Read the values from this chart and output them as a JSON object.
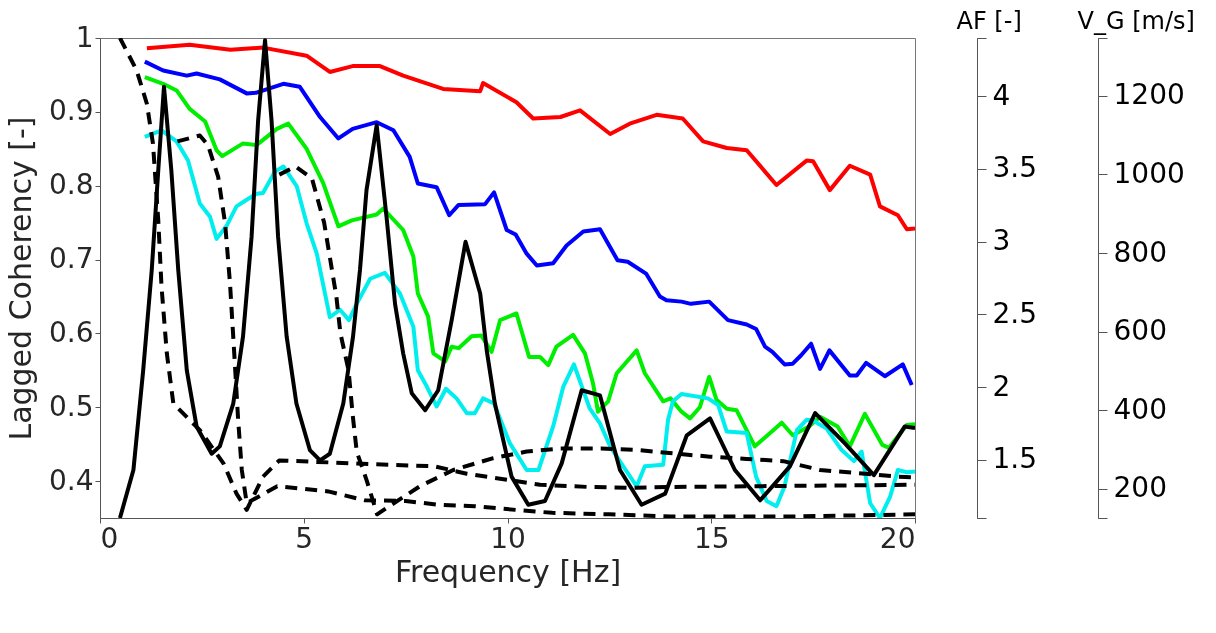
{
  "chart_data": {
    "type": "line",
    "xlabel": "Frequency [Hz]",
    "ylabel": "Lagged Coherency [-]",
    "xlim": [
      0,
      20
    ],
    "xticks": [
      0,
      5,
      10,
      15,
      20
    ],
    "ylim": [
      0.35,
      1
    ],
    "yticks": [
      0.4,
      0.5,
      0.6,
      0.7,
      0.8,
      0.9,
      1
    ],
    "y2label": "AF [-]",
    "y2lim": [
      1.1,
      4.4
    ],
    "y2ticks": [
      1.5,
      2,
      2.5,
      3,
      3.5,
      4
    ],
    "y3label": "V_G [m/s]",
    "y3lim": [
      126,
      1347
    ],
    "y3ticks": [
      200,
      400,
      600,
      800,
      1000,
      1200
    ],
    "series": [
      {
        "color": "#ff0000",
        "x": [
          1.15,
          2.2,
          3.2,
          4.0,
          5.07,
          5.64,
          6.2,
          6.87,
          7.44,
          8.42,
          9.33,
          9.4,
          10.22,
          10.63,
          11.3,
          11.78,
          12.52,
          13.0,
          13.66,
          14.3,
          14.8,
          15.38,
          15.87,
          16.6,
          17.34,
          17.5,
          17.91,
          18.4,
          18.9,
          19.14,
          19.58,
          19.8,
          20
        ],
        "values": [
          0.986,
          0.991,
          0.984,
          0.987,
          0.976,
          0.954,
          0.962,
          0.962,
          0.949,
          0.931,
          0.928,
          0.939,
          0.913,
          0.891,
          0.893,
          0.902,
          0.87,
          0.884,
          0.896,
          0.891,
          0.86,
          0.851,
          0.848,
          0.801,
          0.834,
          0.833,
          0.794,
          0.827,
          0.815,
          0.772,
          0.76,
          0.741,
          0.742
        ]
      },
      {
        "color": "#0000ff",
        "x": [
          1.1,
          1.55,
          2.13,
          2.37,
          2.94,
          3.6,
          3.84,
          4.5,
          4.9,
          5.4,
          5.85,
          6.2,
          6.79,
          7.2,
          7.6,
          7.8,
          8.26,
          8.57,
          8.8,
          9.45,
          9.67,
          9.98,
          10.2,
          10.47,
          10.72,
          11.12,
          11.45,
          11.86,
          12.27,
          12.7,
          12.95,
          13.4,
          13.74,
          13.9,
          14.27,
          14.5,
          14.95,
          15.41,
          15.87,
          16.1,
          16.32,
          16.5,
          16.8,
          17.0,
          17.2,
          17.45,
          17.67,
          17.9,
          18.4,
          18.57,
          18.8,
          19.26,
          19.7,
          19.92
        ],
        "values": [
          0.968,
          0.956,
          0.949,
          0.952,
          0.944,
          0.925,
          0.926,
          0.938,
          0.934,
          0.893,
          0.864,
          0.877,
          0.886,
          0.875,
          0.839,
          0.803,
          0.798,
          0.76,
          0.774,
          0.775,
          0.791,
          0.74,
          0.734,
          0.708,
          0.692,
          0.695,
          0.719,
          0.738,
          0.741,
          0.699,
          0.697,
          0.681,
          0.65,
          0.645,
          0.643,
          0.64,
          0.643,
          0.618,
          0.612,
          0.606,
          0.582,
          0.575,
          0.558,
          0.559,
          0.57,
          0.586,
          0.552,
          0.577,
          0.543,
          0.543,
          0.56,
          0.542,
          0.558,
          0.53
        ]
      },
      {
        "color": "#00ee00",
        "x": [
          1.1,
          1.55,
          1.88,
          2.2,
          2.58,
          2.86,
          3.0,
          3.5,
          3.84,
          4.34,
          4.62,
          5.07,
          5.48,
          5.85,
          6.18,
          6.79,
          6.95,
          7.44,
          7.69,
          7.8,
          8.05,
          8.18,
          8.47,
          8.63,
          8.8,
          9.12,
          9.36,
          9.61,
          9.82,
          10.22,
          10.53,
          10.8,
          11.0,
          11.2,
          11.61,
          11.9,
          12.1,
          12.22,
          12.47,
          12.68,
          13.17,
          13.37,
          13.82,
          14.0,
          14.27,
          14.48,
          14.72,
          14.95,
          15.13,
          15.38,
          15.62,
          16.07,
          16.73,
          17.0,
          17.4,
          17.67,
          18.1,
          18.4,
          18.77,
          19.2,
          19.36,
          19.8,
          20
        ],
        "values": [
          0.947,
          0.938,
          0.929,
          0.904,
          0.887,
          0.848,
          0.84,
          0.857,
          0.855,
          0.877,
          0.884,
          0.85,
          0.803,
          0.745,
          0.753,
          0.761,
          0.769,
          0.74,
          0.704,
          0.654,
          0.623,
          0.573,
          0.562,
          0.582,
          0.58,
          0.596,
          0.597,
          0.575,
          0.618,
          0.627,
          0.568,
          0.568,
          0.557,
          0.582,
          0.598,
          0.573,
          0.532,
          0.494,
          0.508,
          0.546,
          0.577,
          0.546,
          0.508,
          0.512,
          0.494,
          0.485,
          0.5,
          0.541,
          0.51,
          0.498,
          0.496,
          0.447,
          0.479,
          0.462,
          0.474,
          0.487,
          0.474,
          0.447,
          0.491,
          0.449,
          0.445,
          0.476,
          0.477
        ]
      },
      {
        "color": "#00eeee",
        "x": [
          1.1,
          1.51,
          1.88,
          2.16,
          2.45,
          2.7,
          2.86,
          3.1,
          3.35,
          3.6,
          3.84,
          4.0,
          4.29,
          4.5,
          4.83,
          5.07,
          5.32,
          5.64,
          5.89,
          6.11,
          6.3,
          6.63,
          6.99,
          7.36,
          7.69,
          7.8,
          8.02,
          8.26,
          8.49,
          8.75,
          9.0,
          9.2,
          9.4,
          9.67,
          10.06,
          10.47,
          10.76,
          11.12,
          11.37,
          11.63,
          12.02,
          12.27,
          12.52,
          12.84,
          13.17,
          13.37,
          13.82,
          13.94,
          14.06,
          14.27,
          14.92,
          15.17,
          15.38,
          15.87,
          16.1,
          16.36,
          16.6,
          16.8,
          17.1,
          17.34,
          17.5,
          17.83,
          18.2,
          18.5,
          18.69,
          18.9,
          19.14,
          19.39,
          19.58,
          19.8,
          20
        ],
        "values": [
          0.866,
          0.875,
          0.86,
          0.834,
          0.776,
          0.758,
          0.728,
          0.745,
          0.772,
          0.781,
          0.789,
          0.79,
          0.819,
          0.826,
          0.799,
          0.749,
          0.708,
          0.622,
          0.632,
          0.618,
          0.64,
          0.674,
          0.682,
          0.654,
          0.609,
          0.55,
          0.528,
          0.501,
          0.525,
          0.512,
          0.492,
          0.492,
          0.512,
          0.505,
          0.451,
          0.415,
          0.415,
          0.474,
          0.528,
          0.558,
          0.498,
          0.478,
          0.447,
          0.42,
          0.393,
          0.42,
          0.422,
          0.483,
          0.508,
          0.518,
          0.512,
          0.503,
          0.467,
          0.465,
          0.406,
          0.373,
          0.366,
          0.393,
          0.469,
          0.483,
          0.482,
          0.471,
          0.442,
          0.427,
          0.44,
          0.37,
          0.35,
          0.379,
          0.415,
          0.412,
          0.413
        ]
      },
      {
        "color": "#000000",
        "x": [
          0.49,
          0.82,
          1.06,
          1.27,
          1.43,
          1.57,
          1.75,
          1.92,
          2.13,
          2.37,
          2.74,
          2.94,
          3.27,
          3.51,
          3.72,
          3.88,
          4.05,
          4.21,
          4.37,
          4.58,
          4.82,
          5.15,
          5.4,
          5.64,
          5.97,
          6.21,
          6.38,
          6.54,
          6.79,
          7.04,
          7.24,
          7.44,
          7.65,
          7.98,
          8.3,
          8.63,
          8.97,
          9.33,
          9.49,
          9.69,
          10.1,
          10.51,
          10.92,
          11.33,
          11.82,
          12.27,
          12.76,
          13.29,
          13.87,
          14.4,
          14.97,
          15.58,
          16.2,
          16.93,
          17.55,
          18.28,
          18.99,
          19.75,
          20
        ],
        "values": [
          0.35,
          0.415,
          0.55,
          0.686,
          0.821,
          0.934,
          0.821,
          0.686,
          0.55,
          0.474,
          0.437,
          0.447,
          0.505,
          0.596,
          0.731,
          0.888,
          0.997,
          0.888,
          0.731,
          0.596,
          0.505,
          0.442,
          0.428,
          0.437,
          0.505,
          0.596,
          0.686,
          0.794,
          0.882,
          0.753,
          0.64,
          0.573,
          0.519,
          0.496,
          0.523,
          0.618,
          0.724,
          0.654,
          0.577,
          0.505,
          0.406,
          0.368,
          0.373,
          0.424,
          0.523,
          0.516,
          0.415,
          0.368,
          0.383,
          0.462,
          0.485,
          0.415,
          0.374,
          0.42,
          0.492,
          0.451,
          0.408,
          0.474,
          0.472
        ]
      },
      {
        "color": "#000000",
        "line_style": "dashed",
        "x": [
          0.49,
          0.9,
          1.15,
          1.3,
          1.43,
          1.51,
          1.64,
          1.8,
          2.45,
          3.03,
          3.35,
          3.6,
          3.76,
          4.0,
          4.4,
          7.1,
          8.2,
          9.0,
          10.2,
          10.8,
          12.0,
          13.0,
          14.0,
          20
        ],
        "values": [
          1.0,
          0.956,
          0.911,
          0.857,
          0.753,
          0.663,
          0.573,
          0.505,
          0.469,
          0.424,
          0.383,
          0.361,
          0.379,
          0.406,
          0.428,
          0.422,
          0.42,
          0.41,
          0.4,
          0.395,
          0.392,
          0.391,
          0.392,
          0.395
        ]
      },
      {
        "color": "#000000",
        "line_style": "dashed",
        "x": [
          1.9,
          2.45,
          2.65,
          2.9,
          3.07,
          3.19,
          3.29,
          3.39,
          3.48,
          3.6,
          4.35,
          5.6,
          6.5,
          7.5,
          8.3,
          9.2,
          10.2,
          11.1,
          12.5,
          14.0,
          17.0,
          20
        ],
        "values": [
          0.86,
          0.868,
          0.855,
          0.812,
          0.749,
          0.668,
          0.577,
          0.483,
          0.415,
          0.37,
          0.393,
          0.386,
          0.374,
          0.373,
          0.368,
          0.366,
          0.361,
          0.357,
          0.355,
          0.352,
          0.352,
          0.355
        ]
      },
      {
        "color": "#000000",
        "line_style": "dashed",
        "x": [
          4.4,
          4.8,
          5.2,
          5.5,
          5.65,
          5.8,
          5.9,
          6.1,
          6.2,
          6.3,
          6.55,
          6.8,
          7.1,
          7.85,
          8.67,
          9.65,
          10.47,
          11.3,
          12.3,
          13.2,
          14.15,
          14.97,
          15.87,
          16.77,
          17.67,
          18.57,
          19.55,
          20
        ],
        "values": [
          0.815,
          0.826,
          0.81,
          0.75,
          0.7,
          0.65,
          0.6,
          0.55,
          0.49,
          0.44,
          0.4,
          0.355,
          0.366,
          0.393,
          0.415,
          0.431,
          0.44,
          0.444,
          0.444,
          0.442,
          0.437,
          0.433,
          0.43,
          0.427,
          0.415,
          0.411,
          0.406,
          0.405
        ]
      }
    ]
  }
}
